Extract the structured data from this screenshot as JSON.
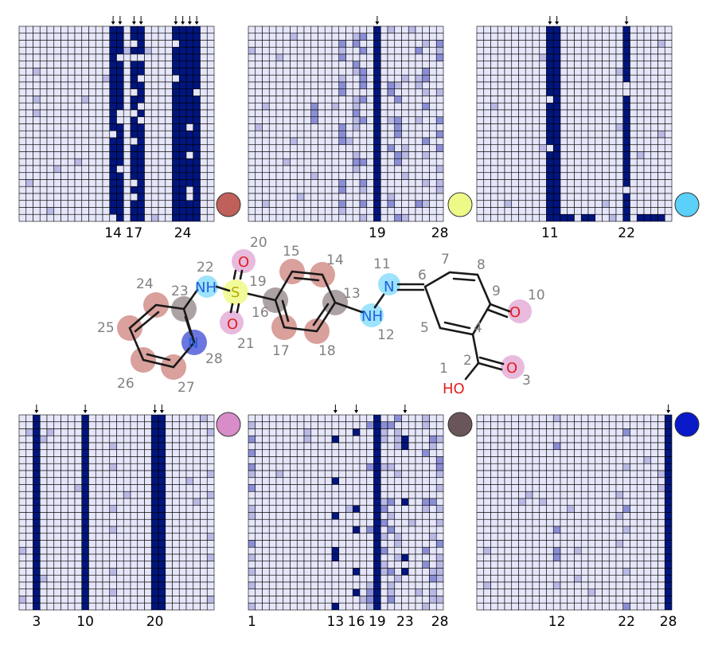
{
  "grid_size": 28,
  "colors": {
    "background_cell": "#e6e6fa",
    "strong_cell": "#00157d",
    "light_cell": "#b9b9e6",
    "mid_cell": "#8a8ed6",
    "grid_line": "#000000",
    "bond": "#1a1a1a",
    "atom_nitrogen": "#1f5fe0",
    "atom_oxygen": "#e01f1f",
    "atom_sulfur": "#b8a800",
    "number_label": "#808080",
    "legend_red": "#c0605a",
    "legend_yellow": "#eefa88",
    "legend_cyan": "#5bd0f8",
    "legend_pink": "#d88cc8",
    "legend_brown": "#6a5558",
    "legend_blue": "#0a1ac8"
  },
  "panels": [
    {
      "id": "p1",
      "legend_color": "#c0605a",
      "arrows": [
        14,
        15,
        17,
        18,
        23,
        24,
        25,
        26
      ],
      "tick_labels": [
        {
          "text": "14",
          "col": 14
        },
        {
          "text": "17",
          "col": 17
        },
        {
          "text": "24",
          "col": 24
        }
      ],
      "strong_cols": [
        14,
        15,
        17,
        18,
        23,
        24,
        25,
        26
      ],
      "light_cols": []
    },
    {
      "id": "p2",
      "legend_color": "#eefa88",
      "arrows": [
        19
      ],
      "tick_labels": [
        {
          "text": "19",
          "col": 19
        },
        {
          "text": "28",
          "col": 28
        }
      ],
      "strong_cols": [
        19
      ],
      "light_cols": [
        10,
        14,
        16,
        17,
        21,
        22,
        23,
        25,
        26,
        28
      ]
    },
    {
      "id": "p3",
      "legend_color": "#5bd0f8",
      "arrows": [
        11,
        12
      ],
      "extra_arrows": [
        22
      ],
      "tick_labels": [
        {
          "text": "11",
          "col": 11
        },
        {
          "text": "22",
          "col": 22
        }
      ],
      "strong_cols": [
        11,
        12,
        22
      ],
      "light_cols": []
    },
    {
      "id": "p4",
      "legend_color": "#d88cc8",
      "arrows": [
        3,
        10,
        20,
        21
      ],
      "tick_labels": [
        {
          "text": "3",
          "col": 3
        },
        {
          "text": "10",
          "col": 10
        },
        {
          "text": "20",
          "col": 20
        }
      ],
      "strong_cols": [
        3,
        10,
        20,
        21
      ],
      "light_cols": []
    },
    {
      "id": "p5",
      "legend_color": "#6a5558",
      "arrows": [
        13,
        16,
        23
      ],
      "tick_labels": [
        {
          "text": "1",
          "col": 1
        },
        {
          "text": "13",
          "col": 13
        },
        {
          "text": "16",
          "col": 16
        },
        {
          "text": "19",
          "col": 19
        },
        {
          "text": "23",
          "col": 23
        },
        {
          "text": "28",
          "col": 28
        }
      ],
      "strong_cols": [
        13,
        16,
        19,
        23
      ],
      "light_cols": [
        1,
        18,
        20,
        21,
        22,
        26,
        27,
        28
      ]
    },
    {
      "id": "p6",
      "legend_color": "#0a1ac8",
      "arrows": [
        28
      ],
      "tick_labels": [
        {
          "text": "12",
          "col": 12
        },
        {
          "text": "22",
          "col": 22
        },
        {
          "text": "28",
          "col": 28
        }
      ],
      "strong_cols": [
        28
      ],
      "light_cols": [
        12,
        22
      ]
    }
  ],
  "molecule": {
    "atom_numbers": [
      "1",
      "2",
      "3",
      "4",
      "5",
      "6",
      "7",
      "8",
      "9",
      "10",
      "11",
      "12",
      "13",
      "14",
      "15",
      "16",
      "17",
      "18",
      "19",
      "20",
      "21",
      "22",
      "23",
      "24",
      "25",
      "26",
      "27",
      "28"
    ],
    "heteroatoms": {
      "o_top": "O",
      "o_bottom": "O",
      "s": "S",
      "nh_sulfonamide": "NH",
      "nh_hydrazo": "NH",
      "n_azo": "N",
      "n_pyridine": "N",
      "o_ketone": "O",
      "o_acid": "O",
      "oh_acid": "HO"
    }
  }
}
